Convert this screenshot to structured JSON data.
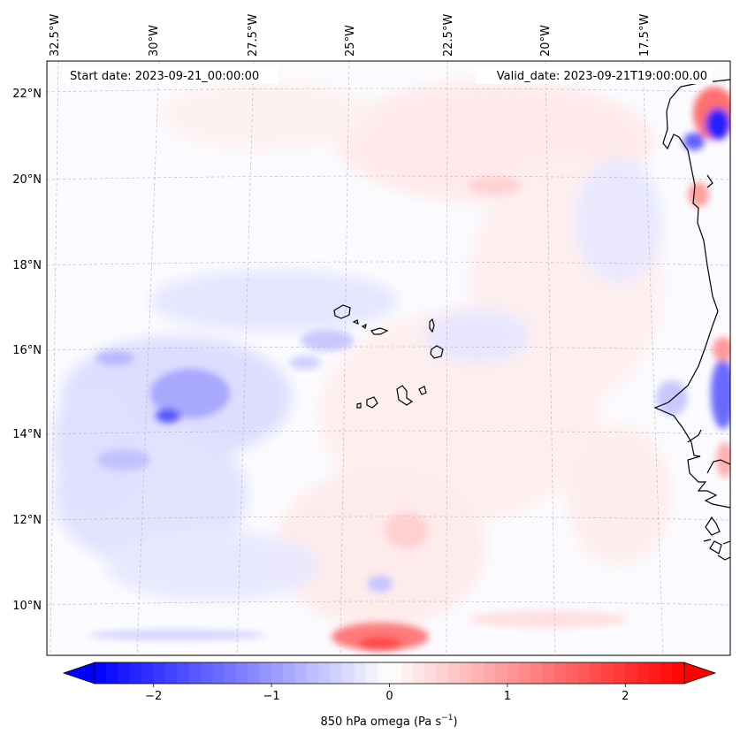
{
  "map": {
    "start_date": "Start date: 2023-09-21_00:00:00",
    "valid_date": "Valid_date: 2023-09-21T19:00:00.00",
    "lon_labels": [
      "32.5°W",
      "30°W",
      "27.5°W",
      "25°W",
      "22.5°W",
      "20°W",
      "17.5°W"
    ],
    "lat_labels": [
      "22°N",
      "20°N",
      "18°N",
      "16°N",
      "14°N",
      "12°N",
      "10°N"
    ],
    "colors": {
      "negative": "#0000ff",
      "neutral": "#ffffff",
      "positive": "#ff0000",
      "coast": "#000000",
      "grid": "#b0b0b0"
    }
  },
  "colorbar": {
    "label_main": "850 hPa omega (Pa s",
    "label_sup": "−1",
    "label_end": ")",
    "min": -2.5,
    "max": 2.5,
    "ticks": [
      "−2",
      "−1",
      "0",
      "1",
      "2"
    ],
    "tick_values": [
      -2,
      -1,
      0,
      1,
      2
    ]
  }
}
